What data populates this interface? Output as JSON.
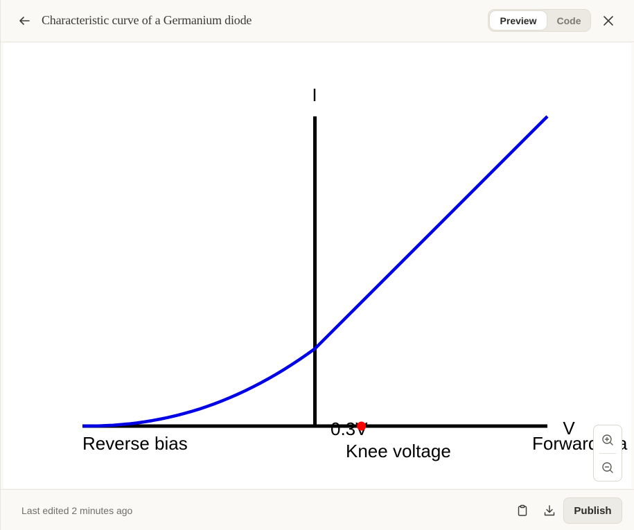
{
  "header": {
    "title": "Characteristic curve of a Germanium diode",
    "toggle": {
      "preview_label": "Preview",
      "code_label": "Code",
      "selected": "Preview"
    }
  },
  "icons": {
    "back": "arrow-left-icon",
    "close": "close-icon",
    "zoom_in": "zoom-in-icon",
    "zoom_out": "zoom-out-icon",
    "copy": "clipboard-icon",
    "download": "download-icon"
  },
  "colors": {
    "curve": "#0000e6",
    "axis": "#000000",
    "marker": "#ff0000"
  },
  "chart_data": {
    "type": "line",
    "title": "",
    "y_axis_label": "I",
    "x_axis_label": "V",
    "labels": {
      "reverse": "Reverse bias",
      "forward": "Forward bia",
      "knee_value": "0.3V",
      "knee": "Knee voltage"
    },
    "knee_voltage": 0.3,
    "marker": {
      "x": 0.3,
      "y": 0,
      "label": "0.3V"
    },
    "xlim": [
      -1.5,
      1.5
    ],
    "ylim": [
      0,
      2.0
    ],
    "series": [
      {
        "x": [
          -1.5,
          -1.4,
          -1.3,
          -1.2,
          -1.1,
          -1.0,
          -0.9,
          -0.8,
          -0.7,
          -0.6,
          -0.5,
          -0.4,
          -0.3,
          -0.2,
          -0.1,
          0.0,
          0.5,
          1.0,
          1.5
        ],
        "y": [
          0,
          0.003,
          0.012,
          0.028,
          0.05,
          0.078,
          0.11,
          0.148,
          0.19,
          0.238,
          0.29,
          0.348,
          0.41,
          0.48,
          0.55,
          0.5,
          0.95,
          1.45,
          2.0
        ]
      }
    ],
    "grid": false,
    "legend": "none"
  },
  "footer": {
    "last_edited": "Last edited 2 minutes ago",
    "publish_label": "Publish"
  }
}
